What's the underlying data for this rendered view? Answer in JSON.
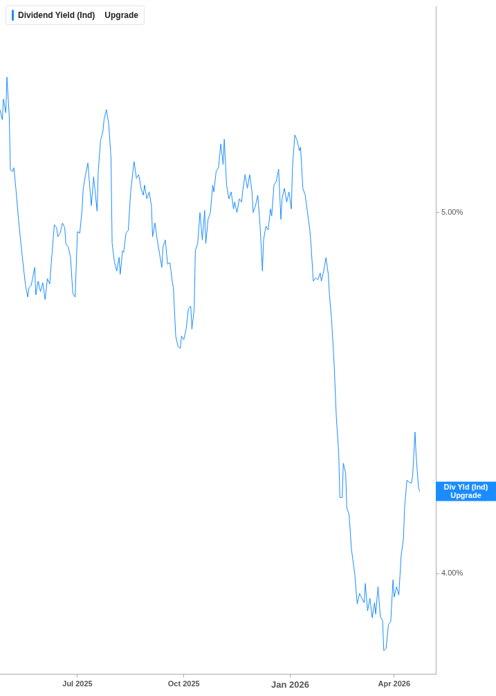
{
  "chart_data": {
    "type": "line",
    "legend": "top left",
    "annotations": [
      "Upgrade",
      "Div Yld (Ind)\nUpgrade"
    ],
    "xlim": [
      "2025-04-25",
      "2026-05-07"
    ],
    "xticks": [
      {
        "value": "2025-07-01",
        "label": "Jul 2025"
      },
      {
        "value": "2025-10-01",
        "label": "Oct 2025"
      },
      {
        "value": "2026-01-01",
        "label": "Jan 2026"
      },
      {
        "value": "2026-04-01",
        "label": "Apr 2026"
      }
    ],
    "ylim": [
      3.722,
      5.57
    ],
    "yticks": [
      {
        "value": 4,
        "label": "4.00%"
      },
      {
        "value": 5,
        "label": "5.00%"
      }
    ],
    "grid": false,
    "marker": "none",
    "line_style": "solid",
    "x": [
      "2025-04-25",
      "2025-04-27",
      "2025-04-28",
      "2025-04-30",
      "2025-05-01",
      "2025-05-03",
      "2025-05-04",
      "2025-05-06",
      "2025-05-07",
      "2025-05-09",
      "2025-05-11",
      "2025-05-14",
      "2025-05-17",
      "2025-05-19",
      "2025-05-20",
      "2025-05-22",
      "2025-05-25",
      "2025-05-26",
      "2025-05-28",
      "2025-05-30",
      "2025-06-01",
      "2025-06-03",
      "2025-06-05",
      "2025-06-07",
      "2025-06-09",
      "2025-06-11",
      "2025-06-13",
      "2025-06-14",
      "2025-06-16",
      "2025-06-18",
      "2025-06-20",
      "2025-06-21",
      "2025-06-23",
      "2025-06-25",
      "2025-06-27",
      "2025-06-29",
      "2025-07-01",
      "2025-07-03",
      "2025-07-05",
      "2025-07-06",
      "2025-07-08",
      "2025-07-10",
      "2025-07-12",
      "2025-07-13",
      "2025-07-15",
      "2025-07-18",
      "2025-07-19",
      "2025-07-21",
      "2025-07-23",
      "2025-07-24",
      "2025-07-26",
      "2025-07-28",
      "2025-07-30",
      "2025-07-31",
      "2025-08-02",
      "2025-08-04",
      "2025-08-06",
      "2025-08-07",
      "2025-08-09",
      "2025-08-10",
      "2025-08-12",
      "2025-08-14",
      "2025-08-16",
      "2025-08-18",
      "2025-08-19",
      "2025-08-21",
      "2025-08-23",
      "2025-08-25",
      "2025-08-27",
      "2025-08-28",
      "2025-08-30",
      "2025-09-01",
      "2025-09-03",
      "2025-09-04",
      "2025-09-06",
      "2025-09-08",
      "2025-09-10",
      "2025-09-12",
      "2025-09-13",
      "2025-09-15",
      "2025-09-17",
      "2025-09-19",
      "2025-09-21",
      "2025-09-22",
      "2025-09-24",
      "2025-09-26",
      "2025-09-28",
      "2025-09-29",
      "2025-10-01",
      "2025-10-03",
      "2025-10-05",
      "2025-10-07",
      "2025-10-08",
      "2025-10-10",
      "2025-10-11",
      "2025-10-13",
      "2025-10-15",
      "2025-10-17",
      "2025-10-19",
      "2025-10-20",
      "2025-10-22",
      "2025-10-24",
      "2025-10-26",
      "2025-10-27",
      "2025-10-29",
      "2025-10-31",
      "2025-11-02",
      "2025-11-04",
      "2025-11-05",
      "2025-11-07",
      "2025-11-09",
      "2025-11-11",
      "2025-11-13",
      "2025-11-14",
      "2025-11-16",
      "2025-11-18",
      "2025-11-20",
      "2025-11-21",
      "2025-11-23",
      "2025-11-25",
      "2025-11-27",
      "2025-11-29",
      "2025-11-30",
      "2025-12-02",
      "2025-12-04",
      "2025-12-06",
      "2025-12-08",
      "2025-12-09",
      "2025-12-11",
      "2025-12-13",
      "2025-12-15",
      "2025-12-16",
      "2025-12-18",
      "2025-12-20",
      "2025-12-22",
      "2025-12-24",
      "2025-12-25",
      "2025-12-27",
      "2025-12-29",
      "2025-12-31",
      "2026-01-02",
      "2026-01-03",
      "2026-01-05",
      "2026-01-07",
      "2026-01-09",
      "2026-01-10",
      "2026-01-12",
      "2026-01-14",
      "2026-01-16",
      "2026-01-18",
      "2026-01-19",
      "2026-01-21",
      "2026-01-23",
      "2026-01-25",
      "2026-01-27",
      "2026-01-28",
      "2026-01-30",
      "2026-02-01",
      "2026-02-03",
      "2026-02-04",
      "2026-02-06",
      "2026-02-08",
      "2026-02-10",
      "2026-02-12",
      "2026-02-13",
      "2026-02-15",
      "2026-02-16",
      "2026-02-18",
      "2026-02-19",
      "2026-02-21",
      "2026-02-23",
      "2026-02-25",
      "2026-02-26",
      "2026-02-28",
      "2026-03-02",
      "2026-03-04",
      "2026-03-06",
      "2026-03-07",
      "2026-03-09",
      "2026-03-11",
      "2026-03-13",
      "2026-03-15",
      "2026-03-16",
      "2026-03-18",
      "2026-03-20",
      "2026-03-22",
      "2026-03-23",
      "2026-03-25",
      "2026-03-27",
      "2026-03-29",
      "2026-03-31",
      "2026-04-01",
      "2026-04-03",
      "2026-04-05",
      "2026-04-07",
      "2026-04-09",
      "2026-04-10",
      "2026-04-12",
      "2026-04-14",
      "2026-04-16",
      "2026-04-17",
      "2026-04-19",
      "2026-04-20",
      "2026-04-22",
      "2026-04-23"
    ],
    "series": [
      {
        "name": "Dividend Yield (Ind)",
        "color": "#1a8cff",
        "values": [
          5.285,
          5.257,
          5.314,
          5.276,
          5.375,
          5.266,
          5.118,
          5.114,
          5.124,
          5.057,
          4.981,
          4.886,
          4.8,
          4.766,
          4.791,
          4.798,
          4.848,
          4.772,
          4.81,
          4.781,
          4.806,
          4.759,
          4.817,
          4.802,
          4.886,
          4.966,
          4.958,
          4.933,
          4.943,
          4.971,
          4.958,
          4.913,
          4.905,
          4.876,
          4.776,
          4.766,
          4.947,
          4.943,
          5.008,
          5.067,
          5.105,
          5.137,
          5.057,
          5.019,
          5.099,
          5.004,
          5.114,
          5.2,
          5.224,
          5.257,
          5.285,
          5.247,
          5.152,
          4.914,
          4.863,
          4.838,
          4.876,
          4.829,
          4.894,
          4.89,
          4.943,
          4.951,
          5.057,
          5.114,
          5.141,
          5.095,
          5.105,
          5.067,
          5.048,
          5.076,
          5.038,
          5.057,
          5.019,
          4.933,
          4.971,
          4.924,
          4.886,
          4.848,
          4.905,
          4.924,
          4.857,
          4.861,
          4.81,
          4.791,
          4.658,
          4.629,
          4.624,
          4.658,
          4.648,
          4.677,
          4.734,
          4.741,
          4.677,
          4.734,
          4.895,
          4.914,
          5.0,
          4.924,
          5.006,
          4.914,
          4.981,
          5.0,
          5.076,
          5.057,
          5.114,
          5.124,
          5.19,
          5.133,
          5.203,
          5.076,
          5.038,
          5.057,
          5.01,
          5.029,
          5.0,
          5.038,
          5.029,
          5.061,
          5.105,
          5.067,
          5.105,
          5.057,
          5.0,
          5.019,
          5.048,
          4.962,
          4.838,
          4.924,
          4.962,
          4.952,
          5.01,
          4.99,
          5.076,
          5.086,
          5.12,
          4.981,
          5.038,
          5.067,
          5.029,
          5.057,
          5.01,
          5.124,
          5.215,
          5.2,
          5.171,
          5.181,
          5.067,
          5.048,
          5.0,
          4.952,
          4.914,
          4.81,
          4.819,
          4.814,
          4.833,
          4.81,
          4.838,
          4.875,
          4.829,
          4.772,
          4.696,
          4.582,
          4.43,
          4.335,
          4.211,
          4.211,
          4.306,
          4.278,
          4.183,
          4.163,
          4.068,
          4.021,
          3.996,
          3.916,
          3.945,
          3.932,
          3.92,
          3.973,
          3.897,
          3.932,
          3.878,
          3.92,
          3.888,
          3.964,
          3.882,
          3.869,
          3.787,
          3.793,
          3.859,
          3.867,
          3.983,
          3.935,
          3.964,
          3.941,
          4.049,
          4.097,
          4.183,
          4.259,
          4.253,
          4.251,
          4.272,
          4.392,
          4.325,
          4.24,
          4.228
        ]
      }
    ]
  }
}
